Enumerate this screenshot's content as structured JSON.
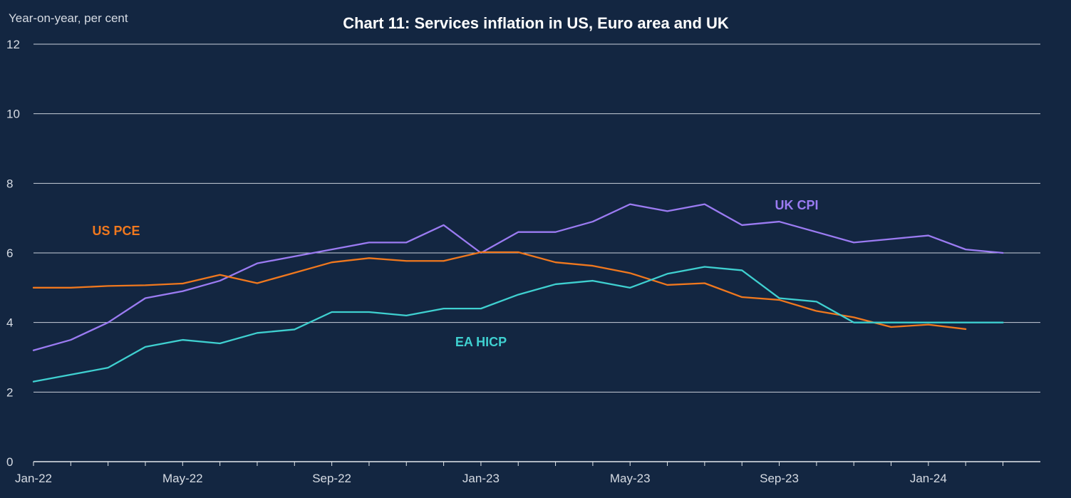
{
  "chart_data": {
    "type": "line",
    "title": "Chart 11: Services inflation in US, Euro area and UK",
    "units_label": "Year-on-year, per cent",
    "xlabel": "",
    "ylabel": "",
    "ylim": [
      0,
      12
    ],
    "yticks": [
      0,
      2,
      4,
      6,
      8,
      10,
      12
    ],
    "grid": true,
    "legend": "none",
    "x": [
      "Jan-22",
      "Feb-22",
      "Mar-22",
      "Apr-22",
      "May-22",
      "Jun-22",
      "Jul-22",
      "Aug-22",
      "Sep-22",
      "Oct-22",
      "Nov-22",
      "Dec-22",
      "Jan-23",
      "Feb-23",
      "Mar-23",
      "Apr-23",
      "May-23",
      "Jun-23",
      "Jul-23",
      "Aug-23",
      "Sep-23",
      "Oct-23",
      "Nov-23",
      "Dec-23",
      "Jan-24",
      "Feb-24",
      "Mar-24"
    ],
    "xtick_labels": [
      "Jan-22",
      "May-22",
      "Sep-22",
      "Jan-23",
      "May-23",
      "Sep-23",
      "Jan-24"
    ],
    "series": [
      {
        "name": "UK CPI",
        "color": "#9b7bf2",
        "values": [
          3.2,
          3.5,
          4.0,
          4.7,
          4.9,
          5.2,
          5.7,
          5.9,
          6.1,
          6.3,
          6.3,
          6.8,
          6.0,
          6.6,
          6.6,
          6.9,
          7.4,
          7.2,
          7.4,
          6.8,
          6.9,
          6.6,
          6.3,
          6.4,
          6.5,
          6.1,
          6.0
        ]
      },
      {
        "name": "US PCE",
        "color": "#f0781e",
        "values": [
          5.0,
          5.0,
          5.05,
          5.07,
          5.12,
          5.37,
          5.13,
          5.43,
          5.73,
          5.85,
          5.77,
          5.77,
          6.02,
          6.02,
          5.73,
          5.63,
          5.42,
          5.08,
          5.13,
          4.73,
          4.65,
          4.33,
          4.15,
          3.87,
          3.94,
          3.81,
          null
        ]
      },
      {
        "name": "EA HICP",
        "color": "#3fd0d0",
        "values": [
          2.3,
          2.5,
          2.7,
          3.3,
          3.5,
          3.4,
          3.7,
          3.8,
          4.3,
          4.3,
          4.2,
          4.4,
          4.4,
          4.8,
          5.1,
          5.2,
          5.0,
          5.4,
          5.6,
          5.5,
          4.7,
          4.6,
          4.0,
          4.0,
          4.0,
          4.0,
          4.0
        ]
      }
    ]
  }
}
